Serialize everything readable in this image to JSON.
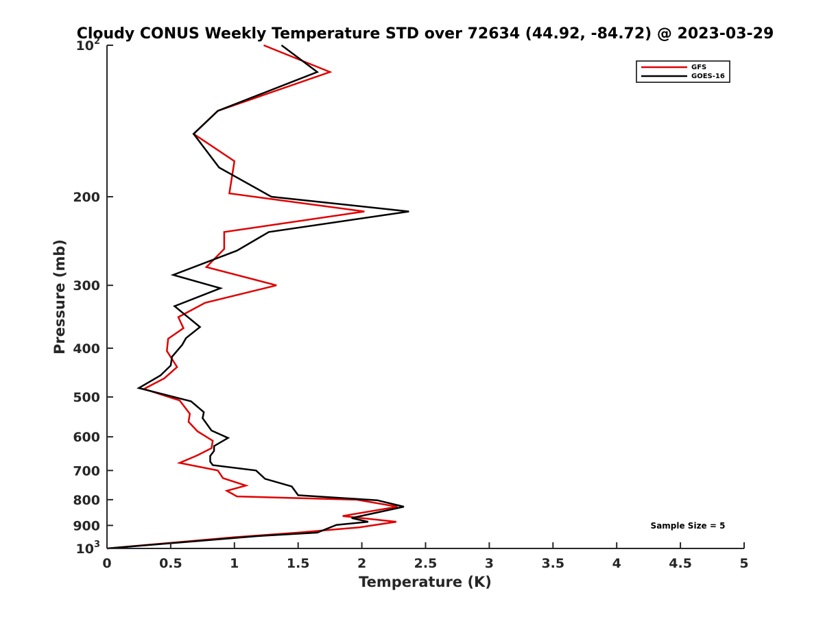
{
  "chart_data": {
    "type": "line",
    "title": "Cloudy CONUS Weekly Temperature STD over 72634 (44.92, -84.72) @ 2023-03-29",
    "xlabel": "Temperature (K)",
    "ylabel": "Pressure (mb)",
    "xlim": [
      0,
      5
    ],
    "ylim": [
      100,
      1000
    ],
    "y_scale": "log",
    "y_reversed": true,
    "x_ticks": [
      "0",
      "0.5",
      "1",
      "1.5",
      "2",
      "2.5",
      "3",
      "3.5",
      "4",
      "4.5",
      "5"
    ],
    "y_ticks": [
      {
        "value": 100,
        "base": "10",
        "exp": "2"
      },
      {
        "value": 200,
        "label": "200"
      },
      {
        "value": 300,
        "label": "300"
      },
      {
        "value": 400,
        "label": "400"
      },
      {
        "value": 500,
        "label": "500"
      },
      {
        "value": 600,
        "label": "600"
      },
      {
        "value": 700,
        "label": "700"
      },
      {
        "value": 800,
        "label": "800"
      },
      {
        "value": 900,
        "label": "900"
      },
      {
        "value": 1000,
        "base": "10",
        "exp": "3"
      }
    ],
    "grid": false,
    "legend_position": "top-right",
    "annotation": "Sample Size = 5",
    "series": [
      {
        "name": "GFS",
        "color": "#e00000",
        "points": [
          [
            1.23,
            100
          ],
          [
            1.75,
            113
          ],
          [
            0.87,
            135
          ],
          [
            0.68,
            150
          ],
          [
            1.0,
            170
          ],
          [
            0.96,
            197
          ],
          [
            2.02,
            214
          ],
          [
            0.92,
            235
          ],
          [
            0.92,
            254
          ],
          [
            0.78,
            276
          ],
          [
            1.33,
            300
          ],
          [
            0.77,
            325
          ],
          [
            0.56,
            347
          ],
          [
            0.6,
            365
          ],
          [
            0.48,
            383
          ],
          [
            0.47,
            405
          ],
          [
            0.55,
            436
          ],
          [
            0.45,
            459
          ],
          [
            0.29,
            482
          ],
          [
            0.57,
            508
          ],
          [
            0.65,
            540
          ],
          [
            0.64,
            560
          ],
          [
            0.71,
            585
          ],
          [
            0.83,
            611
          ],
          [
            0.82,
            632
          ],
          [
            0.71,
            653
          ],
          [
            0.57,
            676
          ],
          [
            0.87,
            700
          ],
          [
            0.91,
            725
          ],
          [
            1.09,
            750
          ],
          [
            0.94,
            768
          ],
          [
            1.02,
            788
          ],
          [
            1.96,
            800
          ],
          [
            2.28,
            826
          ],
          [
            1.85,
            862
          ],
          [
            2.27,
            885
          ],
          [
            1.98,
            908
          ],
          [
            1.5,
            930
          ],
          [
            1.0,
            950
          ],
          [
            0.0,
            1000
          ]
        ]
      },
      {
        "name": "GOES-16",
        "color": "#000000",
        "points": [
          [
            1.37,
            100
          ],
          [
            1.65,
            113
          ],
          [
            0.87,
            135
          ],
          [
            0.68,
            150
          ],
          [
            0.88,
            175
          ],
          [
            1.29,
            200
          ],
          [
            2.37,
            214
          ],
          [
            1.27,
            235
          ],
          [
            1.02,
            256
          ],
          [
            0.52,
            286
          ],
          [
            0.89,
            304
          ],
          [
            0.53,
            330
          ],
          [
            0.73,
            363
          ],
          [
            0.62,
            382
          ],
          [
            0.59,
            394
          ],
          [
            0.51,
            416
          ],
          [
            0.5,
            433
          ],
          [
            0.42,
            453
          ],
          [
            0.25,
            480
          ],
          [
            0.66,
            510
          ],
          [
            0.76,
            536
          ],
          [
            0.75,
            551
          ],
          [
            0.82,
            583
          ],
          [
            0.95,
            603
          ],
          [
            0.84,
            626
          ],
          [
            0.84,
            640
          ],
          [
            0.81,
            655
          ],
          [
            0.81,
            672
          ],
          [
            0.83,
            683
          ],
          [
            1.17,
            700
          ],
          [
            1.24,
            727
          ],
          [
            1.45,
            753
          ],
          [
            1.5,
            784
          ],
          [
            2.12,
            802
          ],
          [
            2.33,
            826
          ],
          [
            1.92,
            870
          ],
          [
            2.05,
            885
          ],
          [
            1.8,
            898
          ],
          [
            1.65,
            930
          ],
          [
            1.18,
            945
          ],
          [
            0.0,
            1000
          ]
        ]
      }
    ]
  }
}
